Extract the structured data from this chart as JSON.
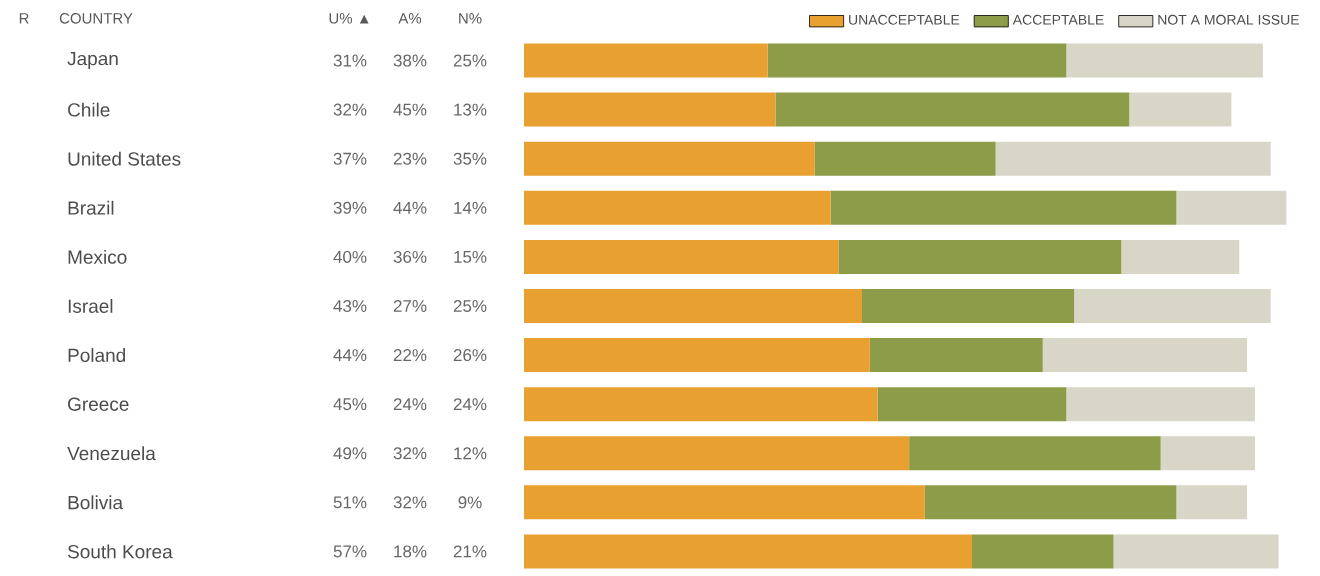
{
  "chart_data": {
    "type": "bar",
    "orientation": "horizontal",
    "stacked": true,
    "legend": "top right",
    "tick_labels": "y",
    "annotations": [
      "R",
      "COUNTRY",
      "U% ▲",
      "A%",
      "N%"
    ],
    "categories": [
      "Japan",
      "Chile",
      "United States",
      "Brazil",
      "Mexico",
      "Israel",
      "Poland",
      "Greece",
      "Venezuela",
      "Bolivia",
      "South Korea"
    ],
    "series": [
      {
        "name": "UNACCEPTABLE",
        "color": "#e8a030",
        "values": [
          31,
          32,
          37,
          39,
          40,
          43,
          44,
          45,
          49,
          51,
          57
        ],
        "value_labels": [
          "31%",
          "32%",
          "37%",
          "39%",
          "40%",
          "43%",
          "44%",
          "45%",
          "49%",
          "51%",
          "57%"
        ]
      },
      {
        "name": "ACCEPTABLE",
        "color": "#8c9c48",
        "values": [
          38,
          45,
          23,
          44,
          36,
          27,
          22,
          24,
          32,
          32,
          18
        ],
        "value_labels": [
          "38%",
          "45%",
          "23%",
          "44%",
          "36%",
          "27%",
          "22%",
          "24%",
          "32%",
          "32%",
          "18%"
        ]
      },
      {
        "name": "NOT A MORAL ISSUE",
        "color": "#d8d6c6",
        "values": [
          25,
          13,
          35,
          14,
          15,
          25,
          26,
          24,
          12,
          9,
          21
        ],
        "value_labels": [
          "25%",
          "13%",
          "35%",
          "14%",
          "15%",
          "25%",
          "26%",
          "24%",
          "12%",
          "9%",
          "21%"
        ]
      }
    ]
  }
}
